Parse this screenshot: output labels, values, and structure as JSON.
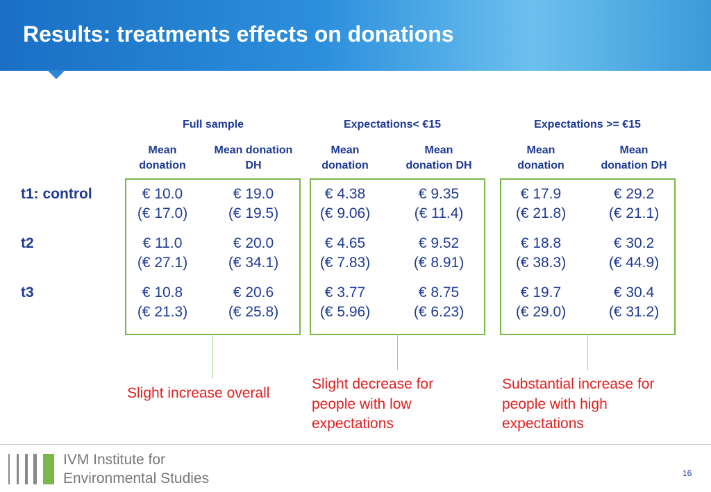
{
  "header": {
    "title": "Results: treatments effects on donations"
  },
  "table": {
    "groups": [
      "Full sample",
      "Expectations< €15",
      "Expectations >= €15"
    ],
    "columns": [
      [
        "Mean",
        "donation"
      ],
      [
        "Mean donation",
        "DH"
      ],
      [
        "Mean",
        "donation"
      ],
      [
        "Mean",
        "donation DH"
      ],
      [
        "Mean",
        "donation"
      ],
      [
        "Mean",
        "donation DH"
      ]
    ],
    "rows": [
      {
        "label": "t1: control",
        "cells": [
          [
            "€ 10.0",
            "(€ 17.0)"
          ],
          [
            "€ 19.0",
            "(€ 19.5)"
          ],
          [
            "€ 4.38",
            "(€ 9.06)"
          ],
          [
            "€ 9.35",
            "(€ 11.4)"
          ],
          [
            "€ 17.9",
            "(€ 21.8)"
          ],
          [
            "€ 29.2",
            "(€ 21.1)"
          ]
        ]
      },
      {
        "label": "t2",
        "cells": [
          [
            "€ 11.0",
            "(€ 27.1)"
          ],
          [
            "€ 20.0",
            "(€ 34.1)"
          ],
          [
            "€ 4.65",
            "(€ 7.83)"
          ],
          [
            "€ 9.52",
            "(€ 8.91)"
          ],
          [
            "€ 18.8",
            "(€ 38.3)"
          ],
          [
            "€ 30.2",
            "(€ 44.9)"
          ]
        ]
      },
      {
        "label": "t3",
        "cells": [
          [
            "€ 10.8",
            "(€ 21.3)"
          ],
          [
            "€ 20.6",
            "(€ 25.8)"
          ],
          [
            "€ 3.77",
            "(€ 5.96)"
          ],
          [
            "€ 8.75",
            "(€ 6.23)"
          ],
          [
            "€ 19.7",
            "(€ 29.0)"
          ],
          [
            "€ 30.4",
            "(€ 31.2)"
          ]
        ]
      }
    ]
  },
  "annotations": [
    [
      "Slight increase overall"
    ],
    [
      "Slight decrease for",
      "people with low",
      "expectations"
    ],
    [
      "Substantial increase for",
      "people with high",
      "expectations"
    ]
  ],
  "footer": {
    "institute": [
      "IVM Institute for",
      "Environmental Studies"
    ],
    "page": "16"
  }
}
